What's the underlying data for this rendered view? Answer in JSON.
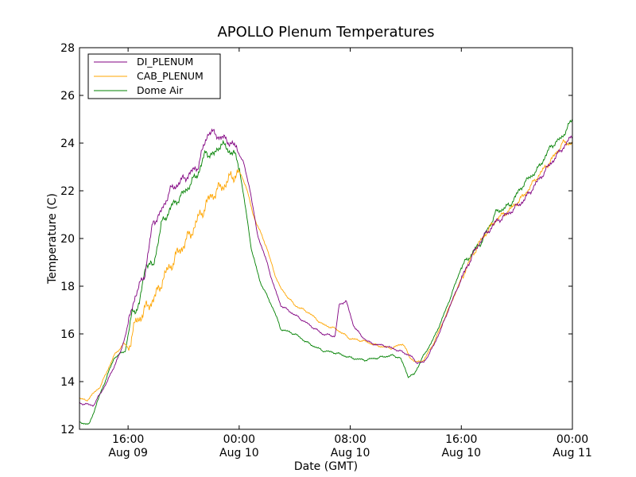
{
  "chart_data": {
    "type": "line",
    "title": "APOLLO Plenum Temperatures",
    "xlabel": "Date (GMT)",
    "ylabel": "Temperature (C)",
    "xlim": [
      12.5,
      48.0
    ],
    "ylim": [
      12,
      28
    ],
    "yticks": [
      12,
      14,
      16,
      18,
      20,
      22,
      24,
      26,
      28
    ],
    "xticks": [
      {
        "x": 16,
        "time": "16:00",
        "date": "Aug 09"
      },
      {
        "x": 24,
        "time": "00:00",
        "date": "Aug 10"
      },
      {
        "x": 32,
        "time": "08:00",
        "date": "Aug 10"
      },
      {
        "x": 40,
        "time": "16:00",
        "date": "Aug 10"
      },
      {
        "x": 48,
        "time": "00:00",
        "date": "Aug 11"
      }
    ],
    "x_units": "hours since Aug 09 00:00 GMT",
    "legend_position": "top-left",
    "series": [
      {
        "name": "DI_PLENUM",
        "color": "#800080",
        "x": [
          12.5,
          13.5,
          14.5,
          15.5,
          16.0,
          16.5,
          17.2,
          17.8,
          18.3,
          19.0,
          20.0,
          21.0,
          21.8,
          22.5,
          23.2,
          23.8,
          24.3,
          24.8,
          25.3,
          26.0,
          26.5,
          27.0,
          28.0,
          29.0,
          30.0,
          30.9,
          31.2,
          31.7,
          32.2,
          32.8,
          33.5,
          34.5,
          35.5,
          36.3,
          36.8,
          37.3,
          38.0,
          38.6,
          39.2,
          40.0,
          40.8,
          41.5,
          42.5,
          43.5,
          44.5,
          45.5,
          46.5,
          47.3,
          48.0
        ],
        "y": [
          13.1,
          13.0,
          14.0,
          15.3,
          16.4,
          17.6,
          18.5,
          20.7,
          21.0,
          22.0,
          22.5,
          23.0,
          24.5,
          24.3,
          24.1,
          23.8,
          23.2,
          22.0,
          20.2,
          19.0,
          18.0,
          17.2,
          16.8,
          16.4,
          16.0,
          15.9,
          17.2,
          17.4,
          16.4,
          15.9,
          15.6,
          15.5,
          15.3,
          15.1,
          14.8,
          14.8,
          15.5,
          16.3,
          17.2,
          18.3,
          19.3,
          20.0,
          20.7,
          21.1,
          21.6,
          22.4,
          23.2,
          23.8,
          24.3
        ]
      },
      {
        "name": "CAB_PLENUM",
        "color": "#ffa500",
        "x": [
          12.5,
          13.0,
          14.0,
          15.0,
          15.7,
          16.0,
          16.5,
          17.2,
          18.0,
          18.5,
          19.5,
          20.5,
          21.3,
          22.0,
          23.0,
          23.5,
          24.0,
          24.5,
          25.0,
          26.0,
          26.5,
          27.0,
          28.0,
          29.0,
          30.0,
          31.0,
          32.0,
          33.0,
          34.0,
          35.0,
          35.8,
          36.3,
          36.8,
          37.3,
          38.0,
          38.6,
          39.2,
          40.0,
          40.8,
          41.5,
          42.5,
          43.5,
          44.5,
          45.5,
          46.5,
          47.3,
          48.0
        ],
        "y": [
          13.3,
          13.2,
          13.8,
          15.1,
          15.6,
          15.4,
          16.4,
          17.0,
          17.6,
          18.3,
          19.3,
          20.2,
          21.1,
          21.8,
          22.3,
          22.6,
          22.8,
          22.2,
          21.0,
          19.6,
          18.6,
          17.9,
          17.2,
          16.9,
          16.4,
          16.2,
          15.8,
          15.7,
          15.5,
          15.4,
          15.6,
          15.0,
          14.8,
          14.9,
          15.6,
          16.4,
          17.2,
          18.3,
          19.3,
          20.0,
          20.8,
          21.2,
          21.8,
          22.6,
          23.3,
          24.0,
          24.0
        ]
      },
      {
        "name": "Dome Air",
        "color": "#008000",
        "x": [
          12.5,
          13.2,
          14.0,
          15.0,
          15.8,
          16.3,
          16.8,
          17.3,
          17.8,
          18.4,
          19.2,
          20.0,
          21.0,
          21.6,
          22.2,
          22.7,
          23.2,
          23.6,
          24.0,
          24.4,
          24.9,
          25.5,
          26.0,
          26.5,
          27.0,
          28.0,
          29.0,
          30.0,
          31.0,
          32.0,
          33.0,
          34.0,
          35.0,
          35.6,
          36.2,
          36.6,
          37.2,
          38.0,
          38.6,
          39.2,
          40.0,
          40.8,
          41.5,
          42.5,
          43.5,
          44.5,
          45.5,
          46.5,
          47.2,
          48.0
        ],
        "y": [
          12.3,
          12.2,
          13.5,
          15.0,
          15.3,
          16.9,
          17.2,
          19.0,
          18.8,
          20.6,
          21.4,
          21.9,
          22.7,
          23.6,
          23.5,
          24.0,
          23.7,
          23.6,
          23.0,
          21.5,
          19.5,
          18.2,
          17.6,
          17.0,
          16.2,
          16.0,
          15.6,
          15.3,
          15.2,
          15.0,
          14.9,
          15.0,
          15.1,
          15.0,
          14.2,
          14.3,
          15.0,
          15.8,
          16.6,
          17.5,
          18.8,
          19.4,
          19.9,
          21.1,
          21.4,
          22.3,
          22.9,
          23.9,
          24.2,
          25.0
        ]
      }
    ]
  }
}
